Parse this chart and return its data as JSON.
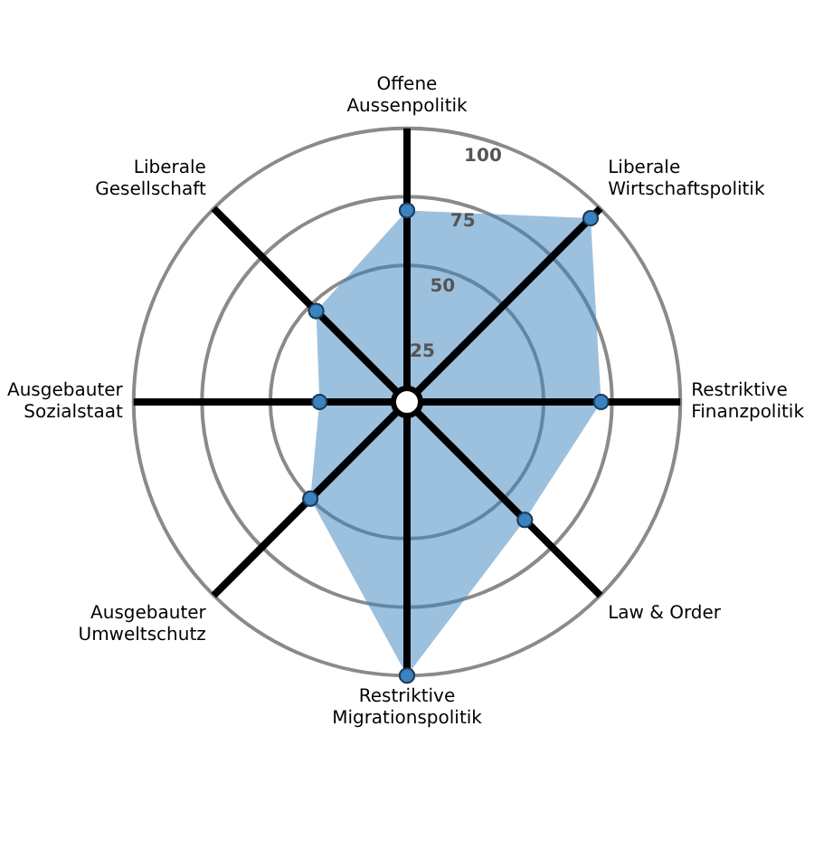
{
  "chart_data": {
    "type": "radar",
    "categories": [
      "Offene\nAussenpolitik",
      "Liberale\nWirtschaftspolitik",
      "Restriktive\nFinanzpolitik",
      "Law & Order",
      "Restriktive\nMigrationspolitik",
      "Ausgebauter\nUmweltschutz",
      "Ausgebauter\nSozialstaat",
      "Liberale\nGesellschaft"
    ],
    "series": [
      {
        "color": "#3a83c0",
        "values": [
          70,
          95,
          71,
          61,
          100,
          50,
          32,
          47
        ]
      }
    ],
    "ylim": [
      0,
      100
    ],
    "yticks": [
      25,
      50,
      75,
      100
    ],
    "marker": "circle",
    "legend": false,
    "grid": true
  }
}
